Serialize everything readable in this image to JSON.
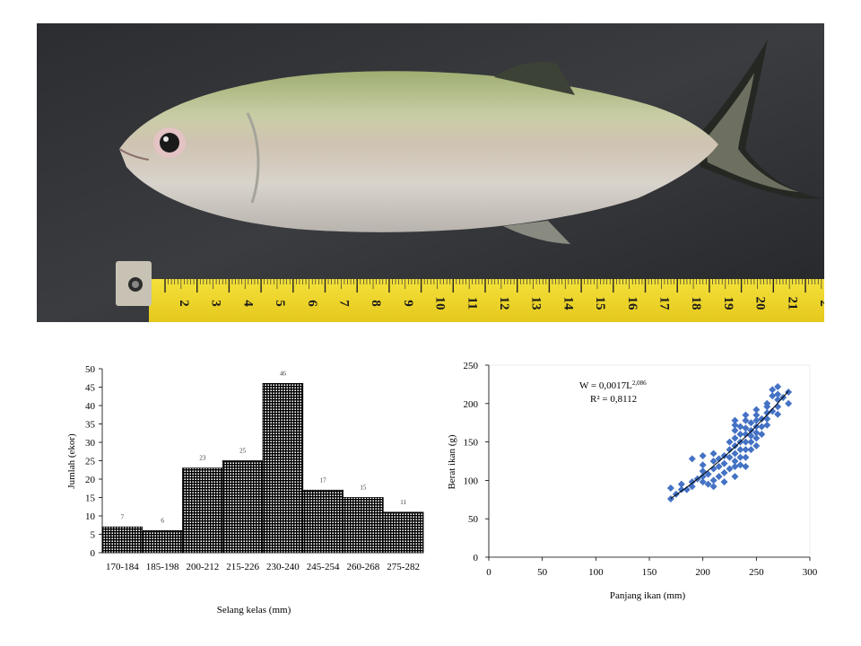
{
  "photo": {
    "ruler_ticks": [
      "2",
      "3",
      "4",
      "5",
      "6",
      "7",
      "8",
      "9",
      "10",
      "11",
      "12",
      "13",
      "14",
      "15",
      "16",
      "17",
      "18",
      "19",
      "20",
      "21",
      "2"
    ]
  },
  "chart_data": [
    {
      "type": "bar",
      "categories": [
        "170-184",
        "185-198",
        "200-212",
        "215-226",
        "230-240",
        "245-254",
        "260-268",
        "275-282"
      ],
      "values": [
        7,
        6,
        23,
        25,
        46,
        17,
        15,
        11
      ],
      "title": "",
      "xlabel": "Selang  kelas (mm)",
      "ylabel": "Jumlah (ekor)",
      "ylim": [
        0,
        50
      ],
      "yticks": [
        "0",
        "5",
        "10",
        "15",
        "20",
        "25",
        "30",
        "35",
        "40",
        "45",
        "50"
      ],
      "grid": false,
      "fill": "hatched black"
    },
    {
      "type": "scatter",
      "title": "",
      "xlabel": "Panjang ikan (mm)",
      "ylabel": "Berat ikan (g)",
      "xlim": [
        0,
        300
      ],
      "ylim": [
        0,
        250
      ],
      "xticks": [
        "0",
        "50",
        "100",
        "150",
        "200",
        "250",
        "300"
      ],
      "yticks": [
        "0",
        "50",
        "100",
        "150",
        "200",
        "250"
      ],
      "equation": "W = 0,0017L",
      "equation_exponent": "2,086",
      "r_squared": "R² = 0,8112",
      "point_color": "#4472C4",
      "trend_line": {
        "a": 0.0017,
        "b": 2.086,
        "x_range": [
          170,
          280
        ]
      },
      "points": [
        [
          170,
          90
        ],
        [
          170,
          76
        ],
        [
          175,
          82
        ],
        [
          180,
          88
        ],
        [
          180,
          95
        ],
        [
          185,
          88
        ],
        [
          190,
          92
        ],
        [
          190,
          98
        ],
        [
          190,
          128
        ],
        [
          195,
          102
        ],
        [
          200,
          105
        ],
        [
          200,
          112
        ],
        [
          200,
          132
        ],
        [
          200,
          120
        ],
        [
          200,
          98
        ],
        [
          205,
          95
        ],
        [
          205,
          108
        ],
        [
          210,
          100
        ],
        [
          210,
          115
        ],
        [
          210,
          125
        ],
        [
          210,
          135
        ],
        [
          210,
          92
        ],
        [
          215,
          105
        ],
        [
          215,
          118
        ],
        [
          215,
          128
        ],
        [
          220,
          110
        ],
        [
          220,
          122
        ],
        [
          220,
          132
        ],
        [
          220,
          98
        ],
        [
          225,
          115
        ],
        [
          225,
          130
        ],
        [
          225,
          140
        ],
        [
          225,
          150
        ],
        [
          230,
          105
        ],
        [
          230,
          118
        ],
        [
          230,
          125
        ],
        [
          230,
          135
        ],
        [
          230,
          145
        ],
        [
          230,
          155
        ],
        [
          230,
          165
        ],
        [
          230,
          172
        ],
        [
          230,
          178
        ],
        [
          235,
          120
        ],
        [
          235,
          130
        ],
        [
          235,
          140
        ],
        [
          235,
          150
        ],
        [
          235,
          160
        ],
        [
          235,
          170
        ],
        [
          240,
          118
        ],
        [
          240,
          130
        ],
        [
          240,
          140
        ],
        [
          240,
          150
        ],
        [
          240,
          160
        ],
        [
          240,
          168
        ],
        [
          240,
          178
        ],
        [
          240,
          185
        ],
        [
          245,
          140
        ],
        [
          245,
          150
        ],
        [
          245,
          158
        ],
        [
          245,
          165
        ],
        [
          245,
          175
        ],
        [
          250,
          145
        ],
        [
          250,
          155
        ],
        [
          250,
          162
        ],
        [
          250,
          170
        ],
        [
          250,
          178
        ],
        [
          250,
          185
        ],
        [
          250,
          192
        ],
        [
          255,
          160
        ],
        [
          255,
          170
        ],
        [
          255,
          180
        ],
        [
          260,
          172
        ],
        [
          260,
          180
        ],
        [
          260,
          188
        ],
        [
          260,
          196
        ],
        [
          260,
          200
        ],
        [
          265,
          190
        ],
        [
          265,
          210
        ],
        [
          265,
          218
        ],
        [
          270,
          186
        ],
        [
          270,
          196
        ],
        [
          270,
          205
        ],
        [
          270,
          212
        ],
        [
          270,
          222
        ],
        [
          275,
          208
        ],
        [
          280,
          200
        ],
        [
          280,
          215
        ]
      ]
    }
  ]
}
